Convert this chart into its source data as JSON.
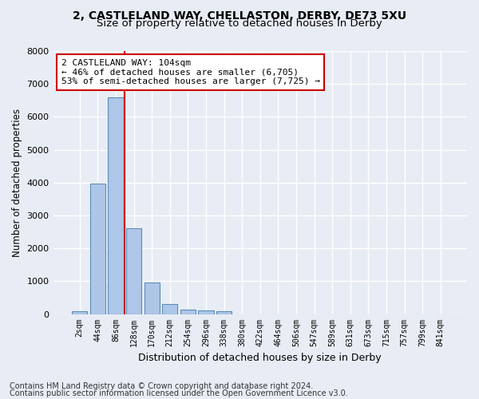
{
  "title_line1": "2, CASTLELAND WAY, CHELLASTON, DERBY, DE73 5XU",
  "title_line2": "Size of property relative to detached houses in Derby",
  "xlabel": "Distribution of detached houses by size in Derby",
  "ylabel": "Number of detached properties",
  "bar_values": [
    75,
    3980,
    6600,
    2620,
    960,
    310,
    130,
    110,
    90,
    0,
    0,
    0,
    0,
    0,
    0,
    0,
    0,
    0,
    0,
    0,
    0
  ],
  "bar_labels": [
    "2sqm",
    "44sqm",
    "86sqm",
    "128sqm",
    "170sqm",
    "212sqm",
    "254sqm",
    "296sqm",
    "338sqm",
    "380sqm",
    "422sqm",
    "464sqm",
    "506sqm",
    "547sqm",
    "589sqm",
    "631sqm",
    "673sqm",
    "715sqm",
    "757sqm",
    "799sqm",
    "841sqm"
  ],
  "bar_color": "#aec6e8",
  "bar_edge_color": "#5b8db8",
  "background_color": "#e8edf5",
  "grid_color": "#ffffff",
  "ylim": [
    0,
    8000
  ],
  "yticks": [
    0,
    1000,
    2000,
    3000,
    4000,
    5000,
    6000,
    7000,
    8000
  ],
  "property_line_x": 2.5,
  "annotation_text": "2 CASTLELAND WAY: 104sqm\n← 46% of detached houses are smaller (6,705)\n53% of semi-detached houses are larger (7,725) →",
  "annotation_box_color": "#ffffff",
  "annotation_box_edge": "#cc0000",
  "vline_color": "#cc0000",
  "footer_line1": "Contains HM Land Registry data © Crown copyright and database right 2024.",
  "footer_line2": "Contains public sector information licensed under the Open Government Licence v3.0.",
  "title_fontsize": 10,
  "subtitle_fontsize": 9.5,
  "annot_fontsize": 8,
  "footer_fontsize": 7
}
